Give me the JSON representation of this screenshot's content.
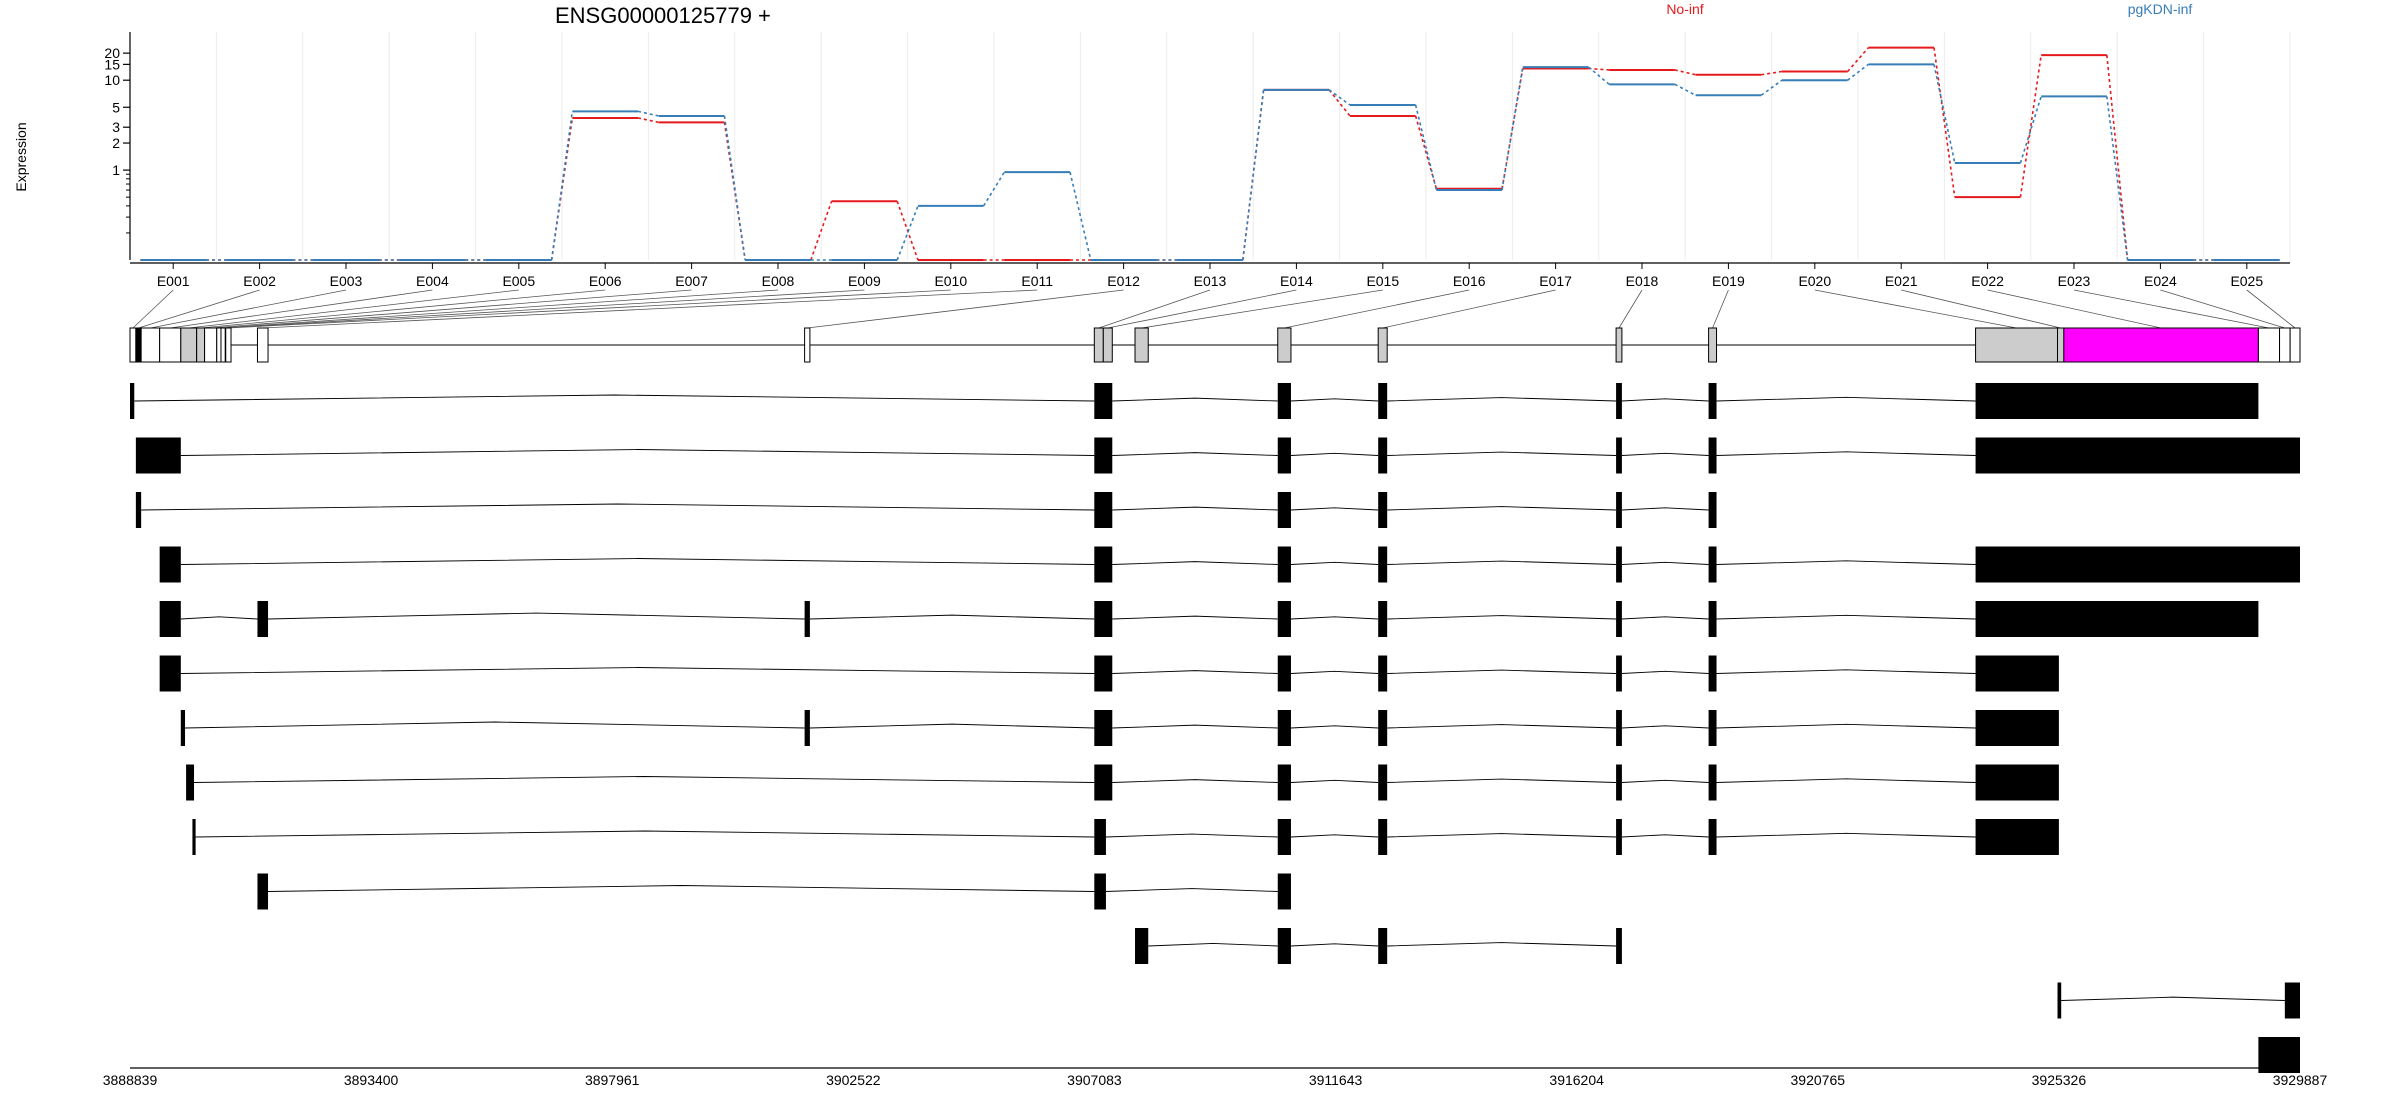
{
  "chart_data": {
    "type": "line",
    "title": "ENSG00000125779 +",
    "ylabel": "Expression",
    "yscale": "log",
    "ylim": [
      0.1,
      28
    ],
    "yticks": [
      {
        "label": "1",
        "value": 1
      },
      {
        "label": "2",
        "value": 2
      },
      {
        "label": "3",
        "value": 3
      },
      {
        "label": "5",
        "value": 5
      },
      {
        "label": "10",
        "value": 10
      },
      {
        "label": "15",
        "value": 15
      },
      {
        "label": "20",
        "value": 20
      }
    ],
    "categories": [
      "E001",
      "E002",
      "E003",
      "E004",
      "E005",
      "E006",
      "E007",
      "E008",
      "E009",
      "E010",
      "E011",
      "E012",
      "E013",
      "E014",
      "E015",
      "E016",
      "E017",
      "E018",
      "E019",
      "E020",
      "E021",
      "E022",
      "E023",
      "E024",
      "E025"
    ],
    "colors": {
      "No-inf": "#e41a1c",
      "pgKDN-inf": "#377eb8"
    },
    "series": [
      {
        "name": "No-inf",
        "values": [
          0.1,
          0.1,
          0.1,
          0.1,
          0.1,
          3.8,
          3.4,
          0.1,
          0.45,
          0.1,
          0.1,
          0.1,
          0.1,
          7.8,
          4.0,
          0.62,
          13.5,
          13.0,
          11.5,
          12.5,
          23.0,
          0.5,
          19.0,
          0.1,
          0.1
        ]
      },
      {
        "name": "pgKDN-inf",
        "values": [
          0.1,
          0.1,
          0.1,
          0.1,
          0.1,
          4.5,
          4.0,
          0.1,
          0.1,
          0.4,
          0.95,
          0.1,
          0.1,
          7.8,
          5.3,
          0.6,
          14.0,
          9.0,
          6.8,
          10.0,
          15.0,
          1.2,
          6.6,
          0.1,
          0.1
        ]
      }
    ],
    "genome_axis": {
      "ticks": [
        "3888839",
        "3893400",
        "3897961",
        "3902522",
        "3907083",
        "3911643",
        "3916204",
        "3920765",
        "3925326",
        "3929887"
      ],
      "min": 3888839,
      "max": 3929887
    },
    "gene_model": {
      "exons": [
        {
          "id": "E001",
          "start": 3888839,
          "end": 3888950,
          "color": "#ffffff"
        },
        {
          "id": "E002",
          "start": 3888950,
          "end": 3889050,
          "color": "#000000"
        },
        {
          "id": "E003",
          "start": 3889050,
          "end": 3889400,
          "color": "#ffffff"
        },
        {
          "id": "E004",
          "start": 3889400,
          "end": 3889800,
          "color": "#ffffff"
        },
        {
          "id": "E005",
          "start": 3889800,
          "end": 3890100,
          "color": "#cccccc"
        },
        {
          "id": "E006",
          "start": 3890100,
          "end": 3890250,
          "color": "#cccccc"
        },
        {
          "id": "E007",
          "start": 3890250,
          "end": 3890480,
          "color": "#ffffff"
        },
        {
          "id": "E008",
          "start": 3890480,
          "end": 3890560,
          "color": "#ffffff"
        },
        {
          "id": "E009",
          "start": 3890560,
          "end": 3890640,
          "color": "#ffffff"
        },
        {
          "id": "E010",
          "start": 3890650,
          "end": 3890750,
          "color": "#ffffff"
        },
        {
          "id": "E011",
          "start": 3891250,
          "end": 3891450,
          "color": "#ffffff"
        },
        {
          "id": "E012",
          "start": 3901600,
          "end": 3901700,
          "color": "#ffffff"
        },
        {
          "id": "E013",
          "start": 3907080,
          "end": 3907250,
          "color": "#cccccc"
        },
        {
          "id": "E014",
          "start": 3907250,
          "end": 3907420,
          "color": "#cccccc"
        },
        {
          "id": "E015",
          "start": 3907850,
          "end": 3908100,
          "color": "#cccccc"
        },
        {
          "id": "E016",
          "start": 3910550,
          "end": 3910800,
          "color": "#cccccc"
        },
        {
          "id": "E017",
          "start": 3912450,
          "end": 3912620,
          "color": "#cccccc"
        },
        {
          "id": "E018",
          "start": 3916950,
          "end": 3917060,
          "color": "#cccccc"
        },
        {
          "id": "E019",
          "start": 3918700,
          "end": 3918850,
          "color": "#cccccc"
        },
        {
          "id": "E020",
          "start": 3923750,
          "end": 3925300,
          "color": "#cccccc"
        },
        {
          "id": "E021",
          "start": 3925300,
          "end": 3925420,
          "color": "#cccccc"
        },
        {
          "id": "E022",
          "start": 3925420,
          "end": 3929100,
          "color": "#ff00ff"
        },
        {
          "id": "E023",
          "start": 3929100,
          "end": 3929500,
          "color": "#ffffff"
        },
        {
          "id": "E024",
          "start": 3929500,
          "end": 3929700,
          "color": "#ffffff"
        },
        {
          "id": "E025",
          "start": 3929700,
          "end": 3929887,
          "color": "#ffffff"
        }
      ],
      "transcripts": [
        [
          [
            3888839,
            3888920
          ],
          [
            3907080,
            3907420
          ],
          [
            3910550,
            3910800
          ],
          [
            3912450,
            3912620
          ],
          [
            3916950,
            3917060
          ],
          [
            3918700,
            3918850
          ],
          [
            3923750,
            3929100
          ]
        ],
        [
          [
            3888950,
            3889800
          ],
          [
            3907080,
            3907420
          ],
          [
            3910550,
            3910800
          ],
          [
            3912450,
            3912620
          ],
          [
            3916950,
            3917060
          ],
          [
            3918700,
            3918850
          ],
          [
            3923750,
            3929887
          ]
        ],
        [
          [
            3888950,
            3889050
          ],
          [
            3907080,
            3907420
          ],
          [
            3910550,
            3910800
          ],
          [
            3912450,
            3912620
          ],
          [
            3916950,
            3917060
          ],
          [
            3918700,
            3918850
          ]
        ],
        [
          [
            3889400,
            3889800
          ],
          [
            3907080,
            3907420
          ],
          [
            3910550,
            3910800
          ],
          [
            3912450,
            3912620
          ],
          [
            3916950,
            3917060
          ],
          [
            3918700,
            3918850
          ],
          [
            3923750,
            3929887
          ]
        ],
        [
          [
            3889400,
            3889800
          ],
          [
            3891250,
            3891450
          ],
          [
            3901600,
            3901700
          ],
          [
            3907080,
            3907420
          ],
          [
            3910550,
            3910800
          ],
          [
            3912450,
            3912620
          ],
          [
            3916950,
            3917060
          ],
          [
            3918700,
            3918850
          ],
          [
            3923750,
            3929100
          ]
        ],
        [
          [
            3889400,
            3889800
          ],
          [
            3907080,
            3907420
          ],
          [
            3910550,
            3910800
          ],
          [
            3912450,
            3912620
          ],
          [
            3916950,
            3917060
          ],
          [
            3918700,
            3918850
          ],
          [
            3923750,
            3925326
          ]
        ],
        [
          [
            3889800,
            3889880
          ],
          [
            3901600,
            3901700
          ],
          [
            3907080,
            3907420
          ],
          [
            3910550,
            3910800
          ],
          [
            3912450,
            3912620
          ],
          [
            3916950,
            3917060
          ],
          [
            3918700,
            3918850
          ],
          [
            3923750,
            3925326
          ]
        ],
        [
          [
            3889900,
            3890050
          ],
          [
            3907080,
            3907420
          ],
          [
            3910550,
            3910800
          ],
          [
            3912450,
            3912620
          ],
          [
            3916950,
            3917060
          ],
          [
            3918700,
            3918850
          ],
          [
            3923750,
            3925326
          ]
        ],
        [
          [
            3890020,
            3890080
          ],
          [
            3907080,
            3907300
          ],
          [
            3910550,
            3910800
          ],
          [
            3912450,
            3912620
          ],
          [
            3916950,
            3917060
          ],
          [
            3918700,
            3918850
          ],
          [
            3923750,
            3925326
          ]
        ],
        [
          [
            3891250,
            3891450
          ],
          [
            3907080,
            3907300
          ],
          [
            3910550,
            3910800
          ]
        ],
        [
          [
            3907850,
            3908100
          ],
          [
            3910550,
            3910800
          ],
          [
            3912450,
            3912620
          ],
          [
            3916950,
            3917060
          ]
        ],
        [
          [
            3925300,
            3925370
          ],
          [
            3929600,
            3929887
          ]
        ],
        [
          [
            3929100,
            3929887
          ]
        ]
      ]
    }
  }
}
